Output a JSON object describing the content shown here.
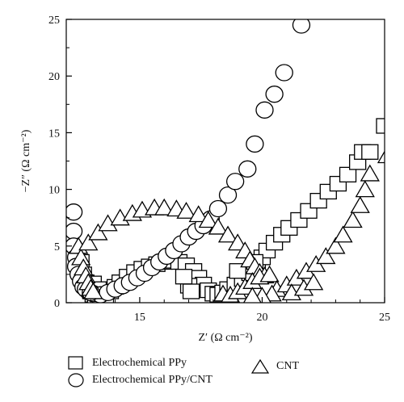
{
  "chart_data": {
    "type": "scatter",
    "xlabel": "Z′ (Ω cm⁻²)",
    "ylabel": "−Z″ (Ω cm⁻²)",
    "xlim": [
      12,
      25
    ],
    "ylim": [
      0,
      25
    ],
    "xticks": [
      15,
      20,
      25
    ],
    "yticks": [
      0,
      5,
      10,
      15,
      20,
      25
    ],
    "grid": false,
    "legend": "bottom",
    "series": [
      {
        "name": "Electrochemical PPy",
        "marker": "square",
        "points": [
          [
            12.6,
            3.6
          ],
          [
            12.7,
            2.5
          ],
          [
            12.8,
            1.8
          ],
          [
            12.9,
            1.3
          ],
          [
            13.0,
            1.0
          ],
          [
            13.1,
            0.7
          ],
          [
            13.2,
            0.5
          ],
          [
            13.4,
            0.4
          ],
          [
            13.6,
            0.6
          ],
          [
            13.8,
            1.0
          ],
          [
            14.0,
            1.4
          ],
          [
            14.2,
            1.8
          ],
          [
            14.5,
            2.3
          ],
          [
            14.8,
            2.7
          ],
          [
            15.1,
            3.0
          ],
          [
            15.4,
            3.2
          ],
          [
            15.7,
            3.4
          ],
          [
            16.0,
            3.6
          ],
          [
            16.3,
            3.7
          ],
          [
            16.6,
            3.6
          ],
          [
            16.9,
            3.3
          ],
          [
            17.2,
            2.8
          ],
          [
            17.4,
            2.2
          ],
          [
            17.6,
            1.6
          ],
          [
            17.8,
            1.1
          ],
          [
            18.0,
            0.8
          ],
          [
            18.2,
            0.7
          ],
          [
            18.4,
            0.9
          ],
          [
            18.6,
            1.2
          ],
          [
            18.9,
            1.6
          ],
          [
            19.2,
            2.1
          ],
          [
            19.5,
            2.6
          ],
          [
            19.8,
            3.2
          ],
          [
            20.0,
            4.0
          ],
          [
            20.2,
            4.6
          ],
          [
            20.5,
            5.3
          ],
          [
            20.8,
            6.0
          ],
          [
            21.1,
            6.6
          ],
          [
            21.5,
            7.3
          ],
          [
            21.9,
            8.1
          ],
          [
            22.3,
            9.0
          ],
          [
            22.7,
            9.8
          ],
          [
            23.1,
            10.5
          ],
          [
            23.5,
            11.3
          ],
          [
            23.9,
            12.4
          ],
          [
            24.1,
            13.3
          ],
          [
            24.4,
            13.3
          ],
          [
            25.0,
            15.6
          ],
          [
            17.0,
            1.5
          ],
          [
            17.1,
            1.0
          ],
          [
            16.8,
            2.3
          ],
          [
            13.1,
            1.7
          ],
          [
            13.3,
            1.2
          ],
          [
            19.0,
            2.8
          ],
          [
            19.7,
            3.6
          ]
        ]
      },
      {
        "name": "Electrochemical PPy/CNT",
        "marker": "circle",
        "points": [
          [
            12.3,
            8.0
          ],
          [
            12.3,
            6.3
          ],
          [
            12.3,
            5.0
          ],
          [
            12.4,
            4.0
          ],
          [
            12.4,
            3.2
          ],
          [
            12.5,
            2.5
          ],
          [
            12.6,
            1.9
          ],
          [
            12.7,
            1.4
          ],
          [
            12.9,
            1.0
          ],
          [
            13.1,
            0.8
          ],
          [
            13.4,
            0.7
          ],
          [
            13.7,
            0.9
          ],
          [
            14.0,
            1.2
          ],
          [
            14.3,
            1.5
          ],
          [
            14.6,
            1.8
          ],
          [
            14.9,
            2.2
          ],
          [
            15.2,
            2.6
          ],
          [
            15.5,
            3.1
          ],
          [
            15.8,
            3.6
          ],
          [
            16.1,
            4.1
          ],
          [
            16.4,
            4.6
          ],
          [
            16.7,
            5.2
          ],
          [
            17.0,
            5.8
          ],
          [
            17.3,
            6.3
          ],
          [
            17.6,
            6.8
          ],
          [
            17.9,
            7.4
          ],
          [
            18.2,
            8.3
          ],
          [
            18.6,
            9.5
          ],
          [
            18.9,
            10.7
          ],
          [
            19.4,
            11.8
          ],
          [
            19.7,
            14.0
          ],
          [
            20.1,
            17.0
          ],
          [
            20.5,
            18.4
          ],
          [
            20.9,
            20.3
          ],
          [
            21.6,
            24.5
          ],
          [
            12.8,
            1.2
          ],
          [
            13.0,
            0.9
          ]
        ]
      },
      {
        "name": "CNT",
        "marker": "triangle",
        "points": [
          [
            12.5,
            5.0
          ],
          [
            12.6,
            4.0
          ],
          [
            12.7,
            3.1
          ],
          [
            12.8,
            2.4
          ],
          [
            12.9,
            1.8
          ],
          [
            13.0,
            1.3
          ],
          [
            13.1,
            1.0
          ],
          [
            12.9,
            5.3
          ],
          [
            13.3,
            6.2
          ],
          [
            13.7,
            7.0
          ],
          [
            14.2,
            7.5
          ],
          [
            14.7,
            7.9
          ],
          [
            15.1,
            8.2
          ],
          [
            15.6,
            8.4
          ],
          [
            16.0,
            8.4
          ],
          [
            16.5,
            8.3
          ],
          [
            16.9,
            8.1
          ],
          [
            17.4,
            7.8
          ],
          [
            17.8,
            7.3
          ],
          [
            18.2,
            6.7
          ],
          [
            18.6,
            6.0
          ],
          [
            19.0,
            5.3
          ],
          [
            19.3,
            4.6
          ],
          [
            19.5,
            3.8
          ],
          [
            19.7,
            3.2
          ],
          [
            19.9,
            2.7
          ],
          [
            20.1,
            2.4
          ],
          [
            18.4,
            0.8
          ],
          [
            18.7,
            0.7
          ],
          [
            19.0,
            1.0
          ],
          [
            19.3,
            1.4
          ],
          [
            19.6,
            1.9
          ],
          [
            19.9,
            2.3
          ],
          [
            20.3,
            2.5
          ],
          [
            20.6,
            1.2
          ],
          [
            21.0,
            1.6
          ],
          [
            21.4,
            2.2
          ],
          [
            21.8,
            2.8
          ],
          [
            22.2,
            3.4
          ],
          [
            22.6,
            4.1
          ],
          [
            23.0,
            5.0
          ],
          [
            23.3,
            6.0
          ],
          [
            23.7,
            7.3
          ],
          [
            24.0,
            8.6
          ],
          [
            24.2,
            10.0
          ],
          [
            24.4,
            11.4
          ],
          [
            25.1,
            13.0
          ],
          [
            20.4,
            0.8
          ],
          [
            20.0,
            0.6
          ],
          [
            19.6,
            0.6
          ],
          [
            21.2,
            0.9
          ],
          [
            21.7,
            1.3
          ],
          [
            22.1,
            1.8
          ]
        ]
      }
    ]
  },
  "legend": {
    "items": [
      {
        "label": "Electrochemical PPy"
      },
      {
        "label": "CNT"
      },
      {
        "label": "Electrochemical PPy/CNT"
      }
    ]
  }
}
